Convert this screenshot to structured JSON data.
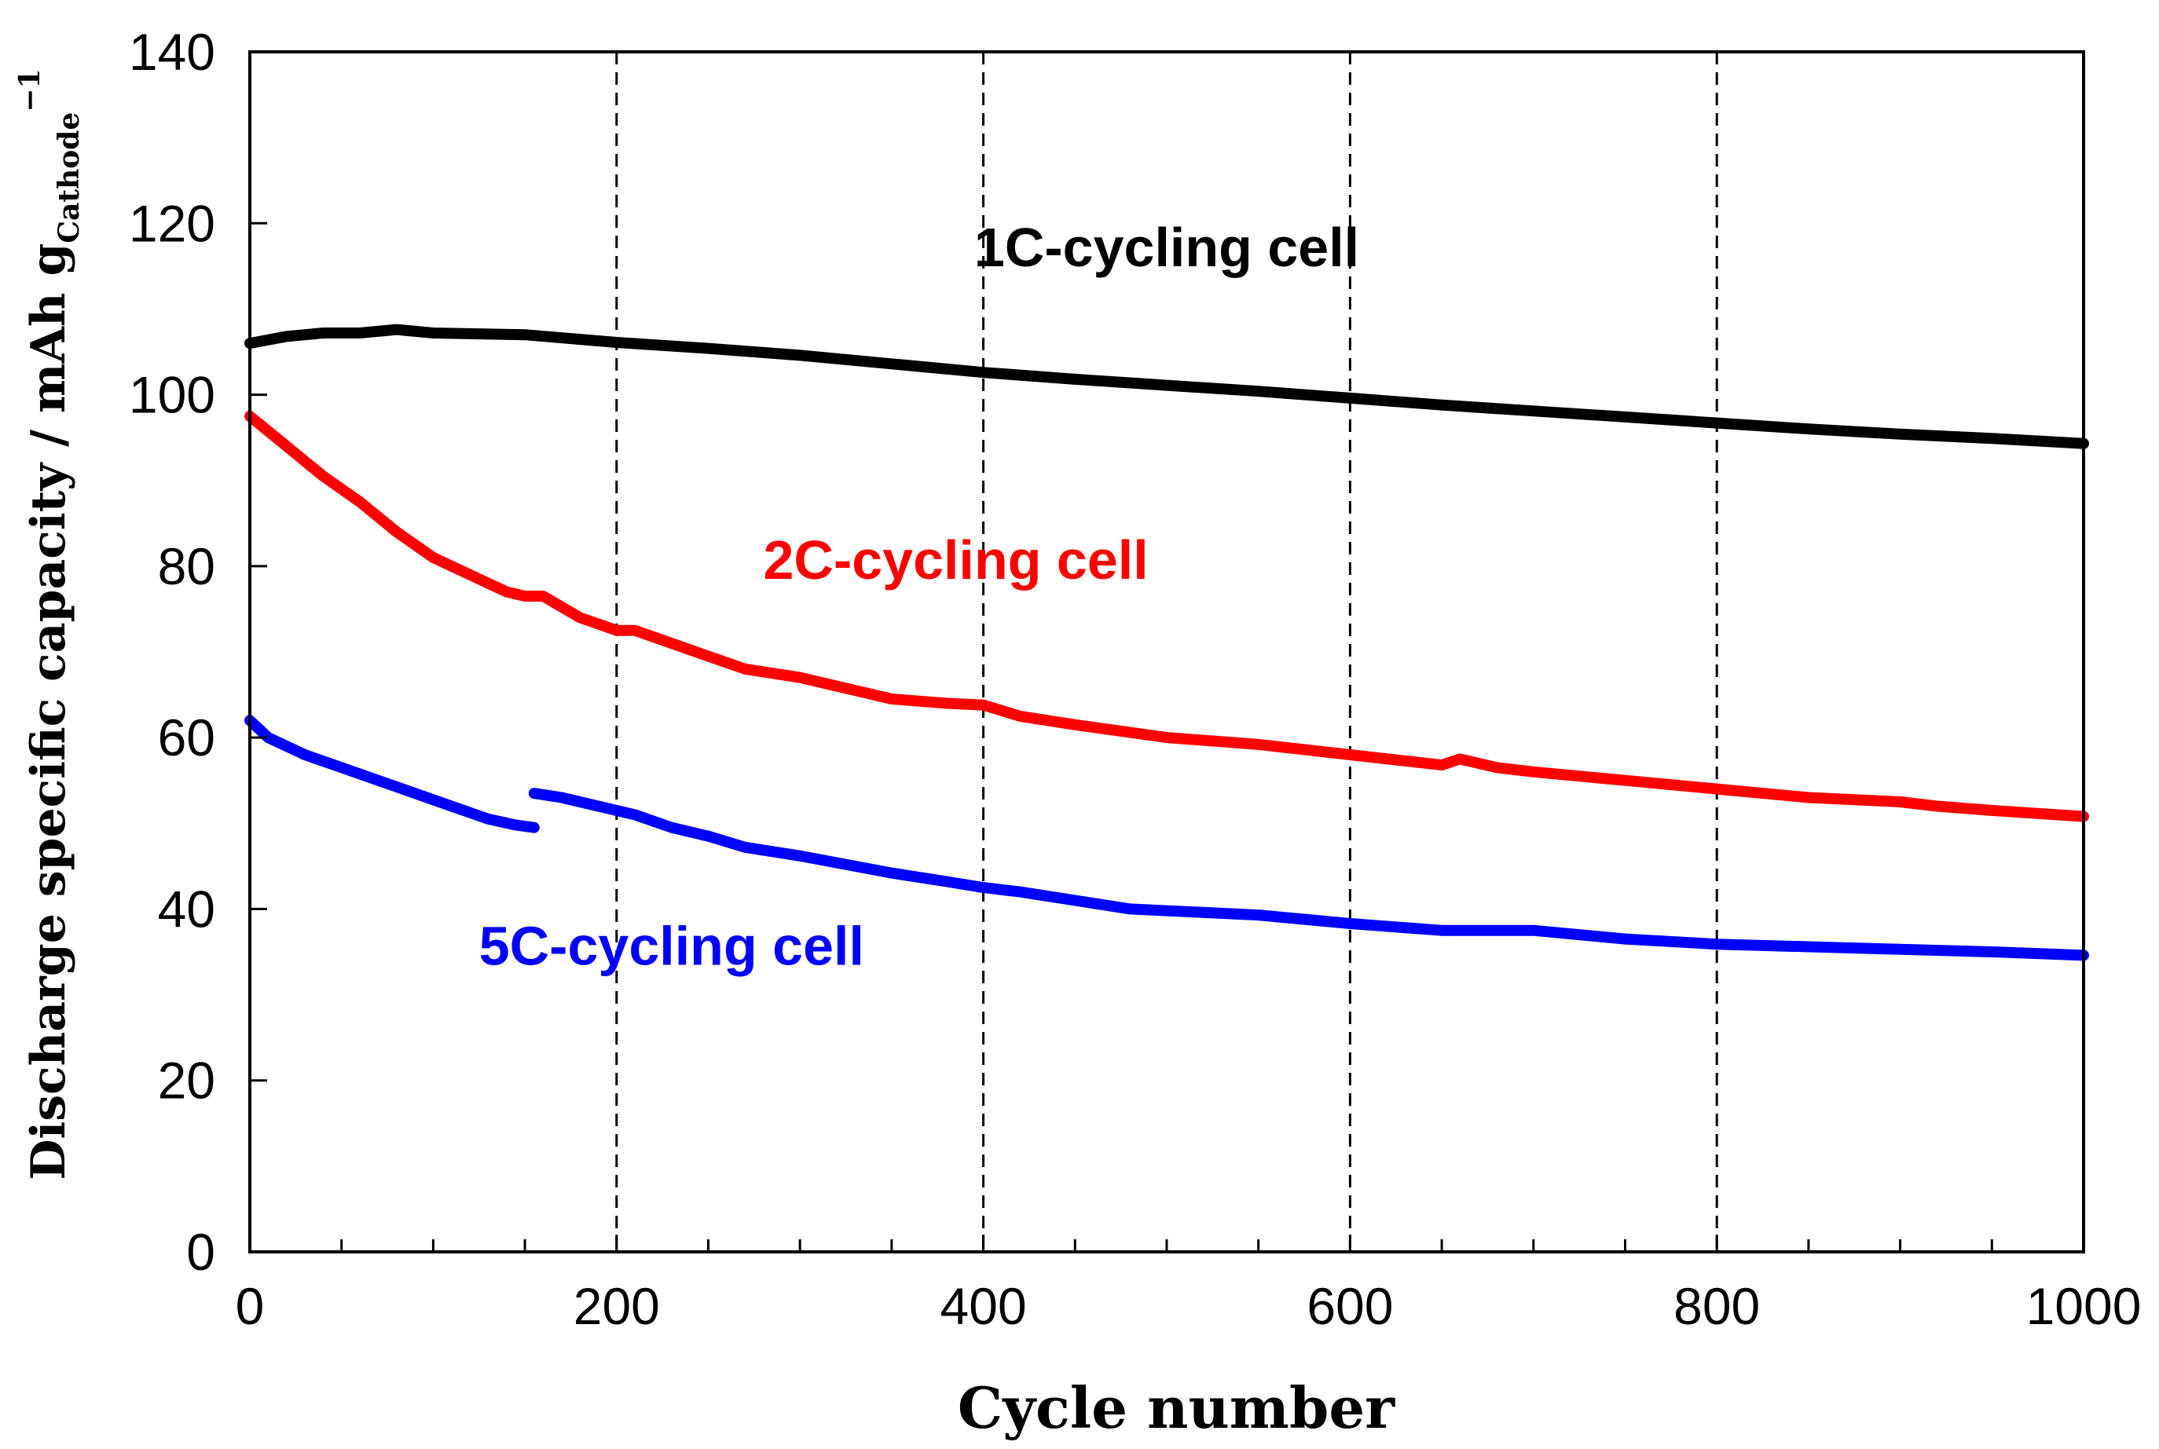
{
  "chart_data": {
    "type": "line",
    "xlabel": "Cycle number",
    "ylabel": {
      "main": "Discharge specific capacity / mAh g",
      "subscript": "Cathode",
      "superscript": "−1"
    },
    "xlim": [
      0,
      1000
    ],
    "ylim": [
      0,
      140
    ],
    "x_ticks": [
      "0",
      "200",
      "400",
      "600",
      "800",
      "1000"
    ],
    "y_ticks": [
      "0",
      "20",
      "40",
      "60",
      "80",
      "100",
      "120",
      "140"
    ],
    "vertical_dashed_lines_at": [
      200,
      400,
      600,
      800
    ],
    "grid": false,
    "series": [
      {
        "name": "1C-cycling cell",
        "color": "#000000",
        "segments": [
          [
            [
              0,
              106
            ],
            [
              20,
              106.8
            ],
            [
              40,
              107.2
            ],
            [
              60,
              107.2
            ],
            [
              80,
              107.6
            ],
            [
              100,
              107.2
            ],
            [
              150,
              107
            ],
            [
              200,
              106.1
            ],
            [
              250,
              105.4
            ],
            [
              300,
              104.6
            ],
            [
              350,
              103.6
            ],
            [
              400,
              102.6
            ],
            [
              450,
              101.8
            ],
            [
              500,
              101.1
            ],
            [
              550,
              100.4
            ],
            [
              600,
              99.6
            ],
            [
              650,
              98.8
            ],
            [
              700,
              98.1
            ],
            [
              750,
              97.4
            ],
            [
              800,
              96.7
            ],
            [
              850,
              96
            ],
            [
              900,
              95.4
            ],
            [
              950,
              94.9
            ],
            [
              1000,
              94.3
            ]
          ]
        ]
      },
      {
        "name": "2C-cycling cell",
        "color": "#ff0000",
        "segments": [
          [
            [
              0,
              97.5
            ],
            [
              20,
              94
            ],
            [
              40,
              90.5
            ],
            [
              60,
              87.5
            ],
            [
              80,
              84
            ],
            [
              100,
              81
            ],
            [
              120,
              79
            ],
            [
              140,
              77
            ],
            [
              150,
              76.5
            ],
            [
              160,
              76.5
            ],
            [
              180,
              74
            ],
            [
              200,
              72.5
            ],
            [
              210,
              72.5
            ],
            [
              230,
              71
            ],
            [
              250,
              69.5
            ],
            [
              270,
              68
            ],
            [
              300,
              67
            ],
            [
              330,
              65.5
            ],
            [
              350,
              64.5
            ],
            [
              380,
              64
            ],
            [
              400,
              63.8
            ],
            [
              420,
              62.5
            ],
            [
              450,
              61.5
            ],
            [
              500,
              60
            ],
            [
              550,
              59.2
            ],
            [
              600,
              58
            ],
            [
              650,
              56.8
            ],
            [
              660,
              57.5
            ],
            [
              680,
              56.5
            ],
            [
              700,
              56
            ],
            [
              750,
              55
            ],
            [
              800,
              54
            ],
            [
              850,
              53
            ],
            [
              900,
              52.5
            ],
            [
              920,
              52
            ],
            [
              950,
              51.5
            ],
            [
              1000,
              50.8
            ]
          ]
        ]
      },
      {
        "name": "5C-cycling cell",
        "color": "#0000ff",
        "segments": [
          [
            [
              0,
              62
            ],
            [
              10,
              60
            ],
            [
              30,
              58
            ],
            [
              50,
              56.5
            ],
            [
              70,
              55
            ],
            [
              90,
              53.5
            ],
            [
              110,
              52
            ],
            [
              130,
              50.5
            ],
            [
              145,
              49.8
            ],
            [
              155,
              49.5
            ]
          ],
          [
            [
              155,
              53.5
            ],
            [
              170,
              53
            ],
            [
              190,
              52
            ],
            [
              210,
              51
            ],
            [
              230,
              49.5
            ],
            [
              250,
              48.5
            ],
            [
              270,
              47.2
            ],
            [
              300,
              46.2
            ],
            [
              330,
              45
            ],
            [
              350,
              44.2
            ],
            [
              380,
              43.2
            ],
            [
              400,
              42.5
            ],
            [
              420,
              42
            ],
            [
              450,
              41
            ],
            [
              480,
              40
            ],
            [
              500,
              39.8
            ],
            [
              550,
              39.3
            ],
            [
              600,
              38.3
            ],
            [
              650,
              37.5
            ],
            [
              700,
              37.5
            ],
            [
              750,
              36.5
            ],
            [
              800,
              35.9
            ],
            [
              850,
              35.6
            ],
            [
              900,
              35.3
            ],
            [
              950,
              35
            ],
            [
              1000,
              34.6
            ]
          ]
        ]
      }
    ],
    "annotations": [
      {
        "text": "1C-cycling cell",
        "x": 500,
        "y": 115,
        "color": "#000000"
      },
      {
        "text": "2C-cycling cell",
        "x": 385,
        "y": 78.5,
        "color": "#ff0000"
      },
      {
        "text": "5C-cycling cell",
        "x": 230,
        "y": 33.5,
        "color": "#0000ff"
      }
    ]
  }
}
